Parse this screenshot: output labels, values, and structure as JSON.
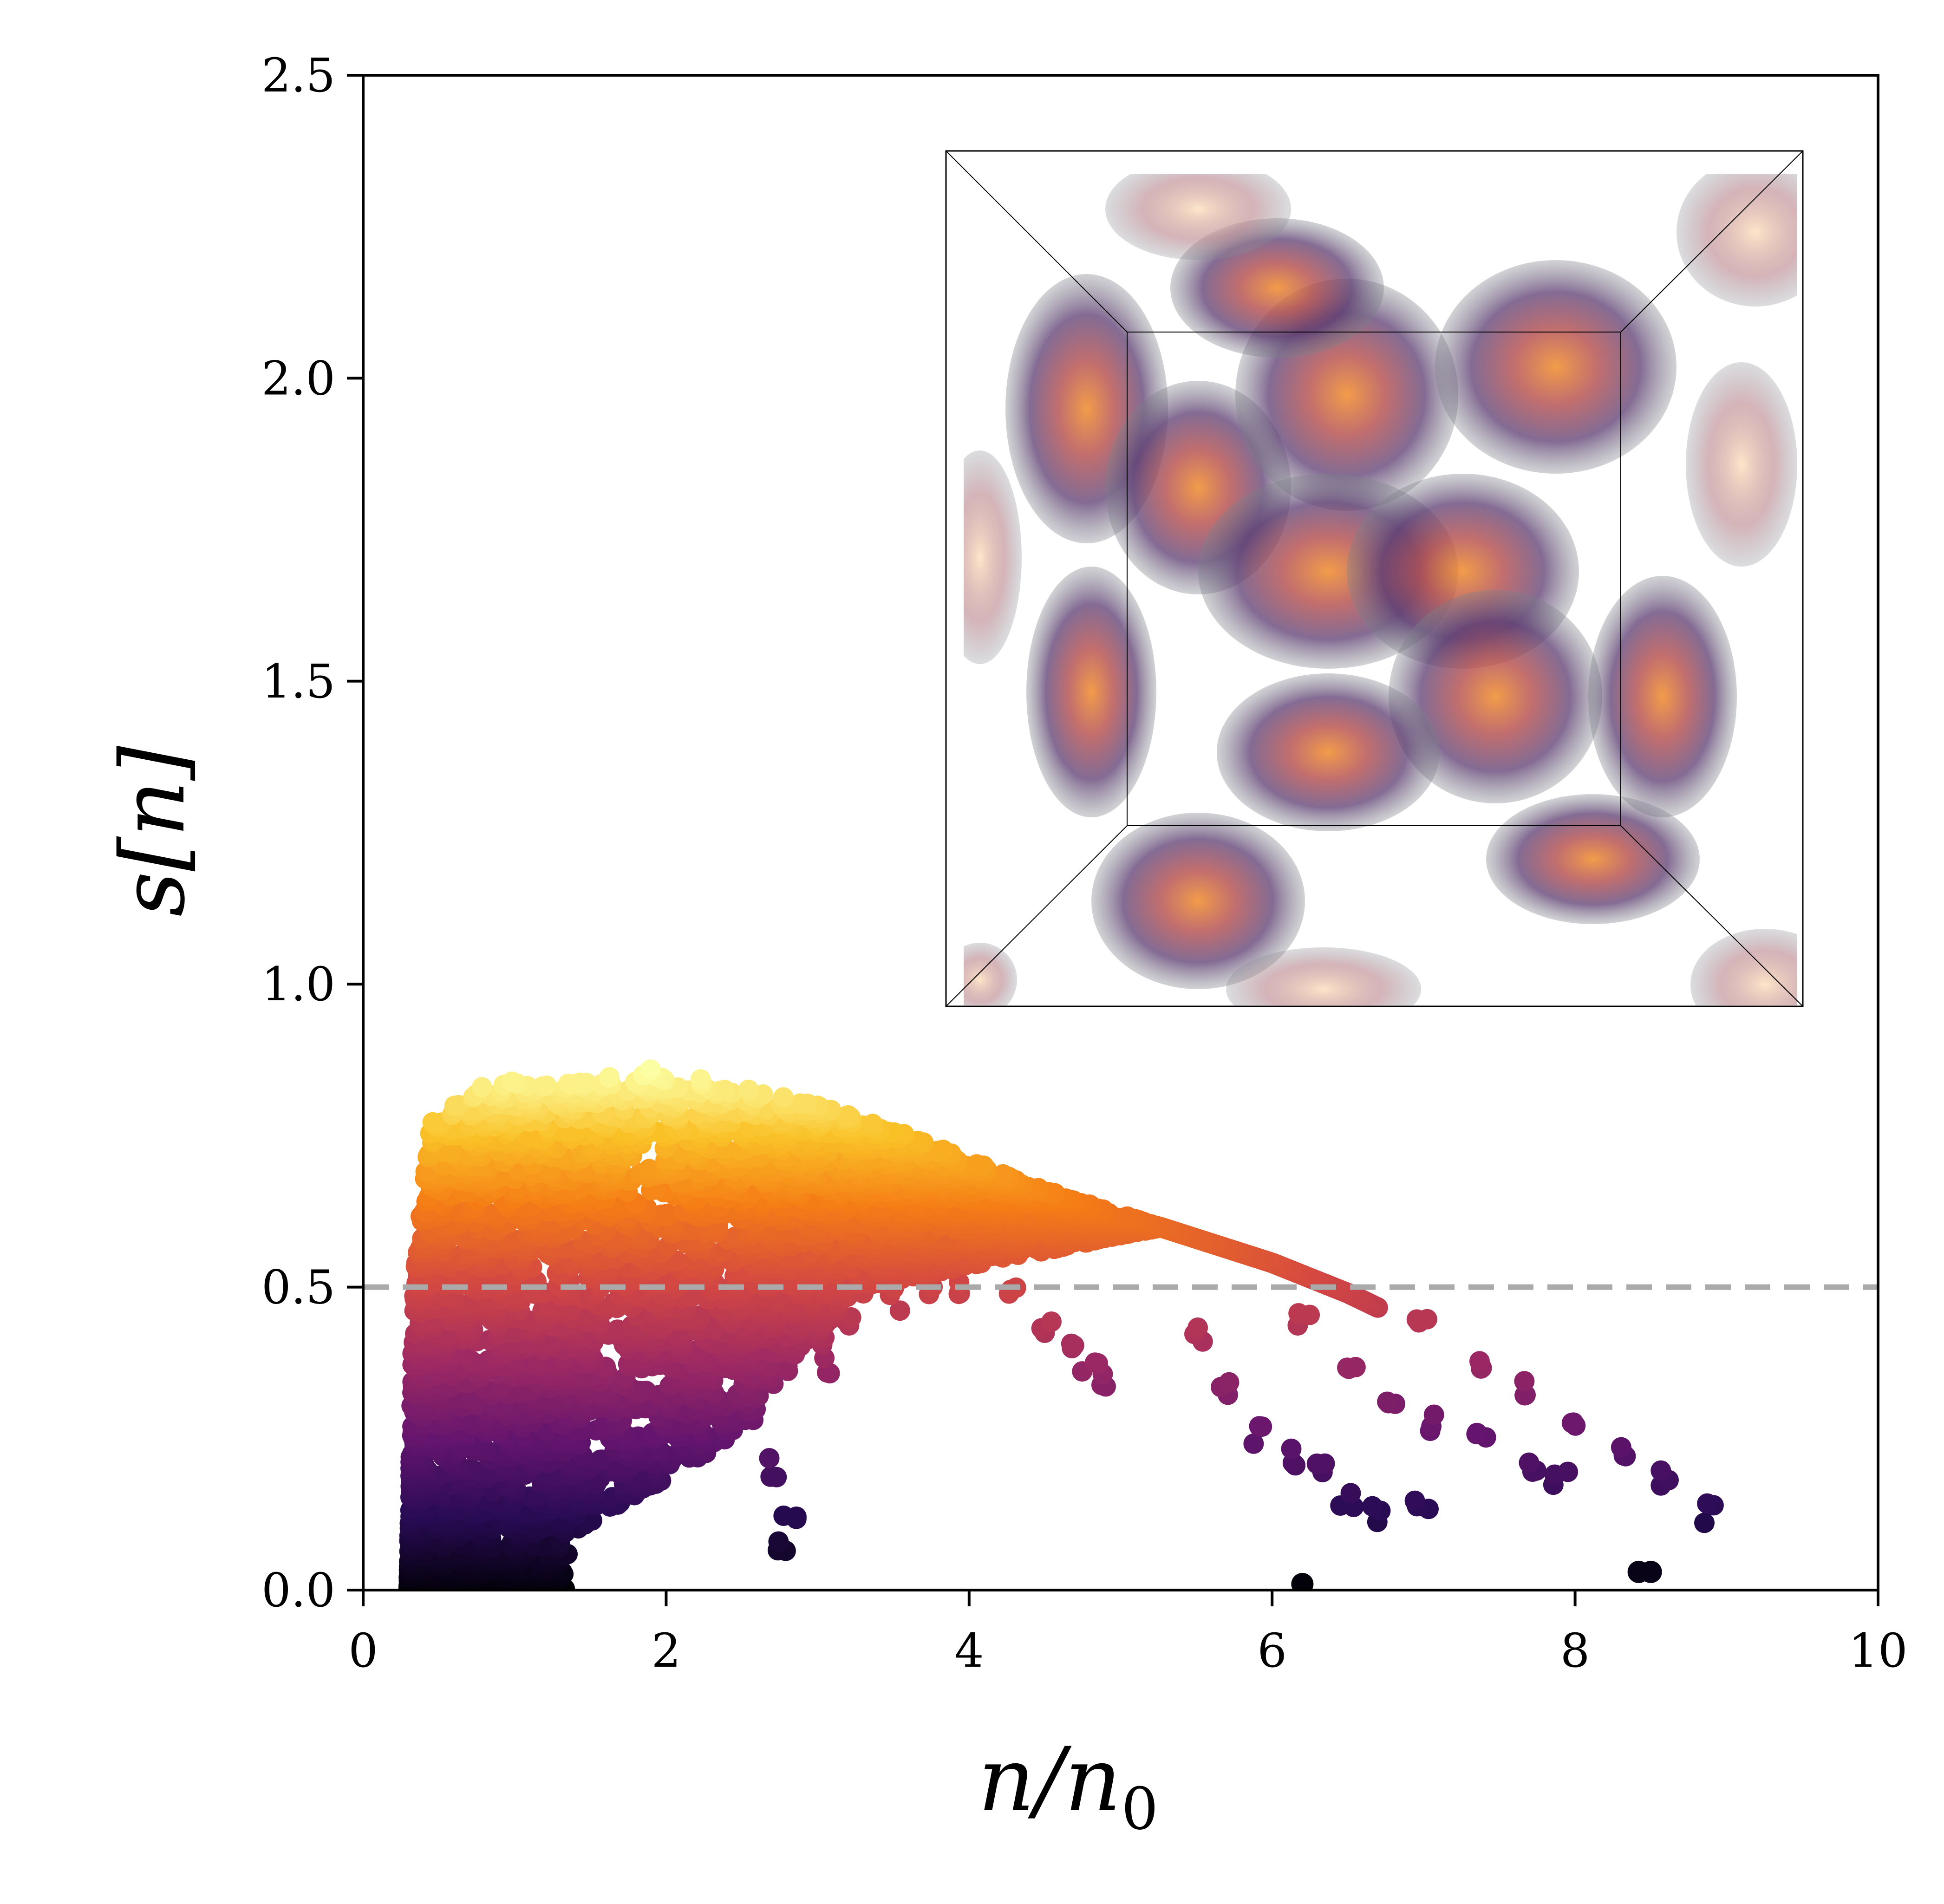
{
  "chart_data": {
    "type": "scatter",
    "title": "",
    "xlabel": {
      "main": "n/n",
      "subscript": "0"
    },
    "ylabel": "s[n]",
    "xlim": [
      0,
      10
    ],
    "ylim": [
      0,
      2.5
    ],
    "x_ticks": [
      0,
      2,
      4,
      6,
      8,
      10
    ],
    "y_ticks": [
      0.0,
      0.5,
      1.0,
      1.5,
      2.0,
      2.5
    ],
    "x_tick_labels": [
      "0",
      "2",
      "4",
      "6",
      "8",
      "10"
    ],
    "y_tick_labels": [
      "0.0",
      "0.5",
      "1.0",
      "1.5",
      "2.0",
      "2.5"
    ],
    "reference_line": {
      "y": 0.5,
      "style": "dashed",
      "color": "#aaaaaa"
    },
    "colormap": "inferno",
    "color_encodes": "s[n]",
    "envelope": [
      [
        0.3,
        0.0
      ],
      [
        0.33,
        0.5
      ],
      [
        0.45,
        0.78
      ],
      [
        0.7,
        0.83
      ],
      [
        1.0,
        0.84
      ],
      [
        1.5,
        0.84
      ],
      [
        1.9,
        0.86
      ],
      [
        2.5,
        0.83
      ],
      [
        3.0,
        0.8
      ],
      [
        3.5,
        0.76
      ],
      [
        4.0,
        0.71
      ],
      [
        4.5,
        0.66
      ],
      [
        5.0,
        0.62
      ],
      [
        5.5,
        0.58
      ],
      [
        6.0,
        0.54
      ],
      [
        6.5,
        0.49
      ],
      [
        7.0,
        0.43
      ],
      [
        7.5,
        0.37
      ],
      [
        8.0,
        0.29
      ],
      [
        8.5,
        0.22
      ],
      [
        8.9,
        0.13
      ]
    ],
    "branches": [
      {
        "x": [
          2.4,
          2.5,
          2.6,
          2.7,
          2.8,
          2.75
        ],
        "y": [
          0.5,
          0.4,
          0.3,
          0.2,
          0.12,
          0.07
        ]
      },
      {
        "x": [
          3.0,
          3.1,
          3.2,
          3.3,
          3.5,
          3.7,
          3.9
        ],
        "y": [
          0.42,
          0.37,
          0.45,
          0.5,
          0.48,
          0.5,
          0.5
        ]
      },
      {
        "x": [
          4.3,
          4.5,
          4.7,
          4.8,
          4.9
        ],
        "y": [
          0.48,
          0.44,
          0.4,
          0.36,
          0.35
        ]
      },
      {
        "x": [
          5.5,
          5.7,
          5.9,
          6.1,
          6.3,
          6.5,
          6.7,
          7.0
        ],
        "y": [
          0.42,
          0.34,
          0.26,
          0.22,
          0.19,
          0.15,
          0.12,
          0.13
        ]
      },
      {
        "x": [
          6.2,
          6.5,
          6.8,
          7.1,
          7.4,
          7.7,
          7.9
        ],
        "y": [
          0.44,
          0.36,
          0.31,
          0.28,
          0.25,
          0.2,
          0.19
        ]
      },
      {
        "x": [
          7.0,
          7.4,
          7.7,
          8.0,
          8.3,
          8.6,
          8.9
        ],
        "y": [
          0.43,
          0.38,
          0.33,
          0.27,
          0.24,
          0.19,
          0.13
        ]
      }
    ],
    "outliers": [
      {
        "x": 6.2,
        "y": 0.01
      },
      {
        "x": 8.42,
        "y": 0.03
      },
      {
        "x": 8.5,
        "y": 0.03
      }
    ],
    "inset": {
      "description_for_alt": "3D volume rendering of a periodic cell with translucent density blobs",
      "position": "top-right"
    }
  }
}
